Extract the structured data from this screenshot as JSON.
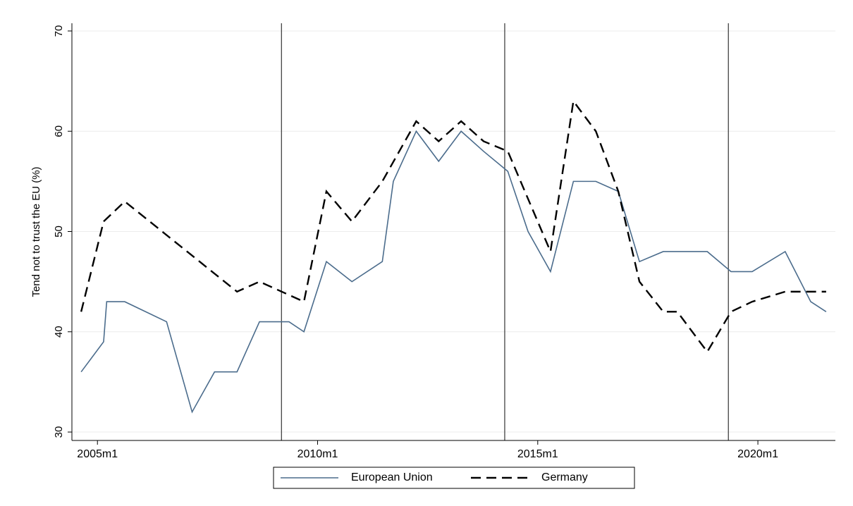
{
  "chart_data": {
    "type": "line",
    "y_label": "Tend not to trust the EU (%)",
    "xlim": [
      2004.42,
      2021.76
    ],
    "ylim": [
      29.16,
      70.77
    ],
    "xticks": [
      {
        "value": 2005,
        "label": "2005m1"
      },
      {
        "value": 2010,
        "label": "2010m1"
      },
      {
        "value": 2015,
        "label": "2015m1"
      },
      {
        "value": 2020,
        "label": "2020m1"
      }
    ],
    "yticks": [
      30,
      40,
      50,
      60,
      70
    ],
    "grid": true,
    "reference_lines": [
      2009.18,
      2014.25,
      2019.33
    ],
    "legend_position": "bottom",
    "series": [
      {
        "name": "European Union",
        "color": "#4b6c8c",
        "dash": "solid",
        "x": [
          2004.63,
          2005.14,
          2005.21,
          2005.62,
          2006.57,
          2007.15,
          2007.66,
          2008.17,
          2008.68,
          2009.35,
          2009.69,
          2010.2,
          2010.78,
          2011.47,
          2011.72,
          2012.24,
          2012.75,
          2013.26,
          2013.77,
          2014.32,
          2014.78,
          2015.29,
          2015.81,
          2016.32,
          2016.83,
          2017.31,
          2017.85,
          2018.85,
          2019.39,
          2019.87,
          2020.62,
          2021.2,
          2021.55
        ],
        "values": [
          36,
          39,
          43,
          43,
          41,
          32,
          36,
          36,
          41,
          41,
          40,
          47,
          45,
          47,
          55,
          60,
          57,
          60,
          58,
          56,
          50,
          46,
          55,
          55,
          54,
          47,
          48,
          48,
          46,
          46,
          48,
          43,
          42
        ]
      },
      {
        "name": "Germany",
        "color": "#000000",
        "dash": "dashed",
        "x": [
          2004.63,
          2005.14,
          2005.62,
          2008.17,
          2008.68,
          2009.69,
          2010.2,
          2010.78,
          2011.47,
          2012.24,
          2012.75,
          2013.26,
          2013.77,
          2014.32,
          2015.29,
          2015.81,
          2016.32,
          2016.83,
          2017.31,
          2017.85,
          2018.17,
          2018.85,
          2019.39,
          2019.87,
          2020.62,
          2021.55
        ],
        "values": [
          42,
          51,
          53,
          44,
          45,
          43,
          54,
          51,
          55,
          61,
          59,
          61,
          59,
          58,
          48,
          63,
          60,
          54,
          45,
          42,
          42,
          38,
          42,
          43,
          44,
          44
        ]
      }
    ]
  }
}
